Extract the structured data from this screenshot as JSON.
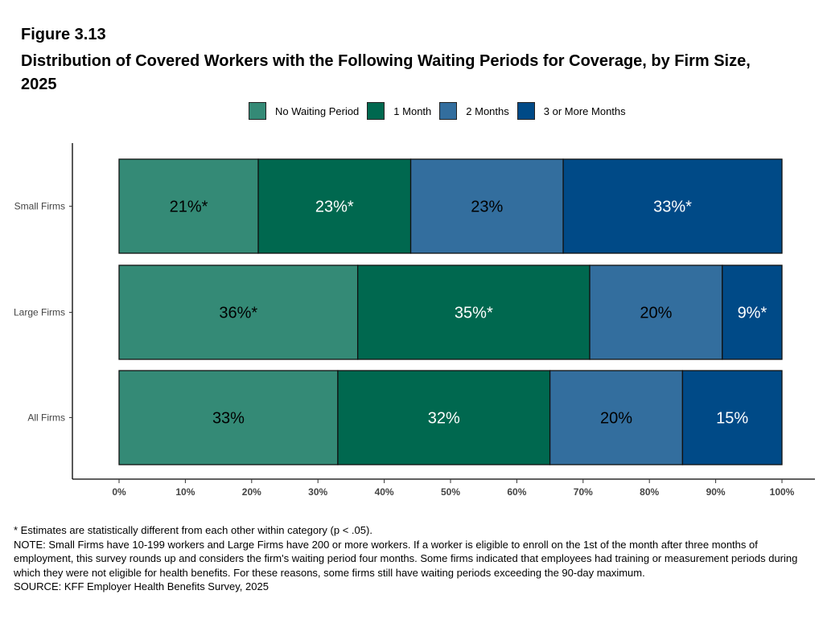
{
  "figure_label": "Figure 3.13",
  "title": "Distribution of Covered Workers with the Following Waiting Periods for Coverage, by Firm Size, 2025",
  "chart_data": {
    "type": "bar",
    "orientation": "horizontal",
    "stacked": true,
    "categories": [
      "Small Firms",
      "Large Firms",
      "All Firms"
    ],
    "series": [
      {
        "name": "No Waiting Period",
        "color": "#348a76",
        "text_color": "#000000",
        "values": [
          21,
          36,
          33
        ],
        "labels": [
          "21%*",
          "36%*",
          "33%"
        ]
      },
      {
        "name": "1 Month",
        "color": "#00684f",
        "text_color": "#ffffff",
        "values": [
          23,
          35,
          32
        ],
        "labels": [
          "23%*",
          "35%*",
          "32%"
        ]
      },
      {
        "name": "2 Months",
        "color": "#336e9e",
        "text_color": "#000000",
        "values": [
          23,
          20,
          20
        ],
        "labels": [
          "23%",
          "20%",
          "20%"
        ]
      },
      {
        "name": "3 or More Months",
        "color": "#004a87",
        "text_color": "#ffffff",
        "values": [
          33,
          9,
          15
        ],
        "labels": [
          "33%*",
          "9%*",
          "15%"
        ]
      }
    ],
    "xlim": [
      0,
      100
    ],
    "xticks": [
      "0%",
      "10%",
      "20%",
      "30%",
      "40%",
      "50%",
      "60%",
      "70%",
      "80%",
      "90%",
      "100%"
    ],
    "legend": "top",
    "grid": false
  },
  "notes": [
    "* Estimates are statistically different from each other within category (p < .05).",
    "NOTE: Small Firms have 10-199 workers and Large Firms have 200 or more workers. If a worker is eligible to enroll on the 1st of the month after three months of employment, this survey rounds up and considers the firm's waiting period four months. Some firms indicated that employees had training or measurement periods during which they were not eligible for health benefits. For these reasons, some firms still have waiting periods exceeding the 90-day maximum.",
    "SOURCE: KFF Employer Health Benefits Survey, 2025"
  ]
}
